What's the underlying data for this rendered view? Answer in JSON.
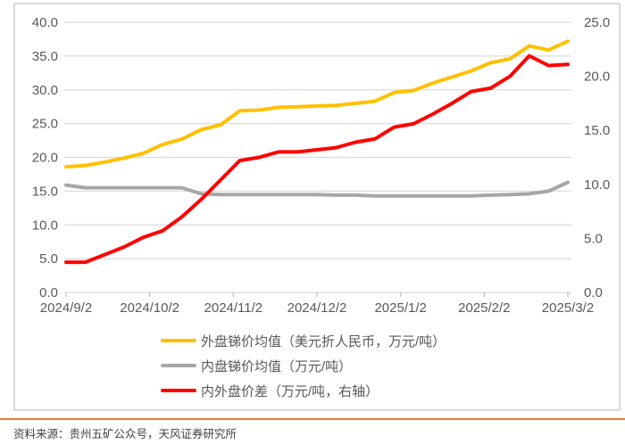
{
  "colors": {
    "outer_series": "#FFC000",
    "domestic_series": "#A6A6A6",
    "premium_series": "#FF0000",
    "grid": "#DCDCDC",
    "axis_text": "#595959",
    "tick_mark": "#BFBFBF",
    "card_border": "#D9D9D9",
    "divider": "#ED7D31",
    "source_text": "#404040"
  },
  "chart_data": {
    "type": "line",
    "x": [
      "2024/9/2",
      "2024/9/9",
      "2024/9/16",
      "2024/9/23",
      "2024/9/30",
      "2024/10/7",
      "2024/10/14",
      "2024/10/21",
      "2024/10/28",
      "2024/11/4",
      "2024/11/11",
      "2024/11/18",
      "2024/11/25",
      "2024/12/2",
      "2024/12/9",
      "2024/12/16",
      "2024/12/23",
      "2024/12/30",
      "2025/1/6",
      "2025/1/13",
      "2025/1/20",
      "2025/1/27",
      "2025/2/3",
      "2025/2/10",
      "2025/2/17",
      "2025/2/24",
      "2025/3/3"
    ],
    "x_tick_labels": [
      "2024/9/2",
      "2024/10/2",
      "2024/11/2",
      "2024/12/2",
      "2025/1/2",
      "2025/2/2",
      "2025/3/2"
    ],
    "series": [
      {
        "name": "外盘锑价均值（美元折人民币，万元/吨）",
        "axis": "left",
        "color": "#FFC000",
        "values": [
          18.6,
          18.8,
          19.3,
          19.9,
          20.6,
          21.9,
          22.7,
          24.1,
          24.8,
          26.9,
          27.0,
          27.4,
          27.5,
          27.6,
          27.7,
          28.0,
          28.3,
          29.6,
          29.9,
          31.0,
          31.9,
          32.8,
          34.0,
          34.6,
          36.5,
          35.9,
          37.2
        ]
      },
      {
        "name": "内盘锑价均值（万元/吨）",
        "axis": "left",
        "color": "#A6A6A6",
        "values": [
          15.9,
          15.5,
          15.5,
          15.5,
          15.5,
          15.5,
          15.5,
          14.6,
          14.5,
          14.5,
          14.5,
          14.5,
          14.5,
          14.5,
          14.4,
          14.4,
          14.3,
          14.3,
          14.3,
          14.3,
          14.3,
          14.3,
          14.4,
          14.5,
          14.6,
          15.0,
          16.3
        ]
      },
      {
        "name": "内外盘价差（万元/吨，右轴）",
        "axis": "right",
        "color": "#FF0000",
        "values": [
          2.8,
          2.8,
          3.5,
          4.2,
          5.1,
          5.7,
          7.0,
          8.6,
          10.4,
          12.2,
          12.5,
          13.0,
          13.0,
          13.2,
          13.4,
          13.9,
          14.2,
          15.3,
          15.6,
          16.5,
          17.5,
          18.6,
          18.9,
          20.0,
          21.9,
          21.0,
          21.1
        ]
      }
    ],
    "left_axis": {
      "min": 0,
      "max": 40,
      "step": 5,
      "tick_labels": [
        "0.0",
        "5.0",
        "10.0",
        "15.0",
        "20.0",
        "25.0",
        "30.0",
        "35.0",
        "40.0"
      ]
    },
    "right_axis": {
      "min": 0,
      "max": 25,
      "step": 5,
      "tick_labels": [
        "0.0",
        "5.0",
        "10.0",
        "15.0",
        "20.0",
        "25.0"
      ]
    },
    "title": "",
    "xlabel": "",
    "ylabel": "",
    "grid": true,
    "legend_position": "bottom-left"
  },
  "footer": {
    "source": "资料来源：贵州五矿公众号，天风证券研究所"
  }
}
